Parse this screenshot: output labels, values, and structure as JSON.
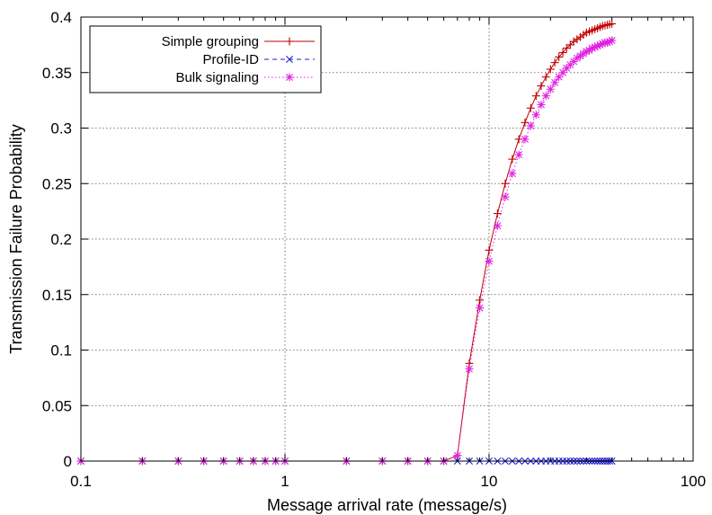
{
  "chart_data": {
    "type": "line",
    "xlabel": "Message arrival rate (message/s)",
    "ylabel": "Transmission Failure Probability",
    "xscale": "log",
    "xlim": [
      0.1,
      100
    ],
    "ylim": [
      0,
      0.4
    ],
    "grid": true,
    "legend_position": "top-left",
    "x_ticks": [
      0.1,
      1,
      10,
      100
    ],
    "x_tick_labels": [
      "0.1",
      "1",
      "10",
      "100"
    ],
    "y_ticks": [
      0,
      0.05,
      0.1,
      0.15,
      0.2,
      0.25,
      0.3,
      0.35,
      0.4
    ],
    "y_tick_labels": [
      "0",
      "0.05",
      "0.1",
      "0.15",
      "0.2",
      "0.25",
      "0.3",
      "0.35",
      "0.4"
    ],
    "series": [
      {
        "name": "Simple grouping",
        "color": "#c00000",
        "marker": "plus",
        "line": "solid",
        "x": [
          0.1,
          0.2,
          0.3,
          0.4,
          0.5,
          0.6,
          0.7,
          0.8,
          0.9,
          1,
          2,
          3,
          4,
          5,
          6,
          7,
          8,
          9,
          10,
          11,
          12,
          13,
          14,
          15,
          16,
          17,
          18,
          19,
          20,
          21,
          22,
          23,
          24,
          25,
          26,
          27,
          28,
          29,
          30,
          31,
          32,
          33,
          34,
          35,
          36,
          37,
          38,
          39,
          40
        ],
        "y": [
          0,
          0,
          0,
          0,
          0,
          0,
          0,
          0,
          0,
          0,
          0,
          0,
          0,
          0,
          0,
          0.005,
          0.088,
          0.145,
          0.19,
          0.223,
          0.25,
          0.272,
          0.29,
          0.305,
          0.318,
          0.329,
          0.338,
          0.346,
          0.353,
          0.359,
          0.364,
          0.368,
          0.372,
          0.375,
          0.378,
          0.38,
          0.382,
          0.384,
          0.386,
          0.387,
          0.388,
          0.389,
          0.39,
          0.391,
          0.392,
          0.3925,
          0.393,
          0.3935,
          0.394
        ]
      },
      {
        "name": "Profile-ID",
        "color": "#2020d0",
        "marker": "cross",
        "line": "dashed",
        "x": [
          0.1,
          0.2,
          0.3,
          0.4,
          0.5,
          0.6,
          0.7,
          0.8,
          0.9,
          1,
          2,
          3,
          4,
          5,
          6,
          7,
          8,
          9,
          10,
          11,
          12,
          13,
          14,
          15,
          16,
          17,
          18,
          19,
          20,
          21,
          22,
          23,
          24,
          25,
          26,
          27,
          28,
          29,
          30,
          31,
          32,
          33,
          34,
          35,
          36,
          37,
          38,
          39,
          40
        ],
        "y": [
          0,
          0,
          0,
          0,
          0,
          0,
          0,
          0,
          0,
          0,
          0,
          0,
          0,
          0,
          0,
          0,
          0,
          0,
          0,
          0,
          0,
          0,
          0,
          0,
          0,
          0,
          0,
          0,
          0,
          0,
          0,
          0,
          0,
          0,
          0,
          0,
          0,
          0,
          0,
          0,
          0,
          0,
          0,
          0,
          0,
          0,
          0,
          0,
          0
        ]
      },
      {
        "name": "Bulk signaling",
        "color": "#e020e0",
        "marker": "star",
        "line": "dotted",
        "x": [
          0.1,
          0.2,
          0.3,
          0.4,
          0.5,
          0.6,
          0.7,
          0.8,
          0.9,
          1,
          2,
          3,
          4,
          5,
          6,
          7,
          8,
          9,
          10,
          11,
          12,
          13,
          14,
          15,
          16,
          17,
          18,
          19,
          20,
          21,
          22,
          23,
          24,
          25,
          26,
          27,
          28,
          29,
          30,
          31,
          32,
          33,
          34,
          35,
          36,
          37,
          38,
          39,
          40
        ],
        "y": [
          0,
          0,
          0,
          0,
          0,
          0,
          0,
          0,
          0,
          0,
          0,
          0,
          0,
          0,
          0,
          0.005,
          0.083,
          0.138,
          0.18,
          0.212,
          0.238,
          0.259,
          0.276,
          0.29,
          0.302,
          0.312,
          0.321,
          0.329,
          0.335,
          0.341,
          0.346,
          0.35,
          0.354,
          0.357,
          0.36,
          0.363,
          0.365,
          0.367,
          0.369,
          0.37,
          0.372,
          0.373,
          0.374,
          0.375,
          0.376,
          0.377,
          0.377,
          0.378,
          0.379
        ]
      }
    ]
  }
}
